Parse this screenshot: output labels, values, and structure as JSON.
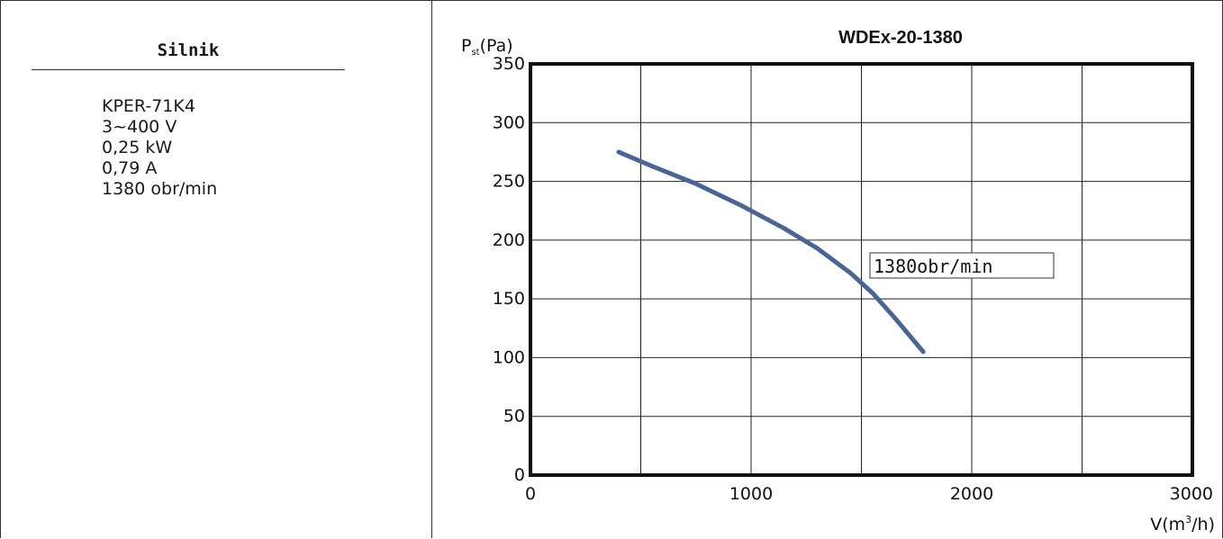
{
  "motor": {
    "heading": "Silnik",
    "specs": [
      "KPER-71K4",
      "3~400 V",
      "0,25 kW",
      "0,79 A",
      "1380 obr/min"
    ]
  },
  "chart_data": {
    "type": "line",
    "title": "WDEx-20-1380",
    "ylabel_main": "P",
    "ylabel_sub": "st",
    "ylabel_unit": "(Pa)",
    "xlabel_main": "V(m",
    "xlabel_sup": "3",
    "xlabel_end": "/h)",
    "xlim": [
      0,
      3000
    ],
    "ylim": [
      0,
      350
    ],
    "x_ticks": [
      0,
      1000,
      2000,
      3000
    ],
    "y_ticks": [
      0,
      50,
      100,
      150,
      200,
      250,
      300,
      350
    ],
    "x_grid_step": 500,
    "y_grid_step": 50,
    "grid": true,
    "series": [
      {
        "name": "1380obr/min",
        "color": "#4a6592",
        "x": [
          400,
          550,
          750,
          950,
          1150,
          1300,
          1450,
          1550,
          1650,
          1780
        ],
        "y": [
          275,
          263,
          248,
          230,
          210,
          193,
          172,
          155,
          134,
          105
        ]
      }
    ]
  }
}
